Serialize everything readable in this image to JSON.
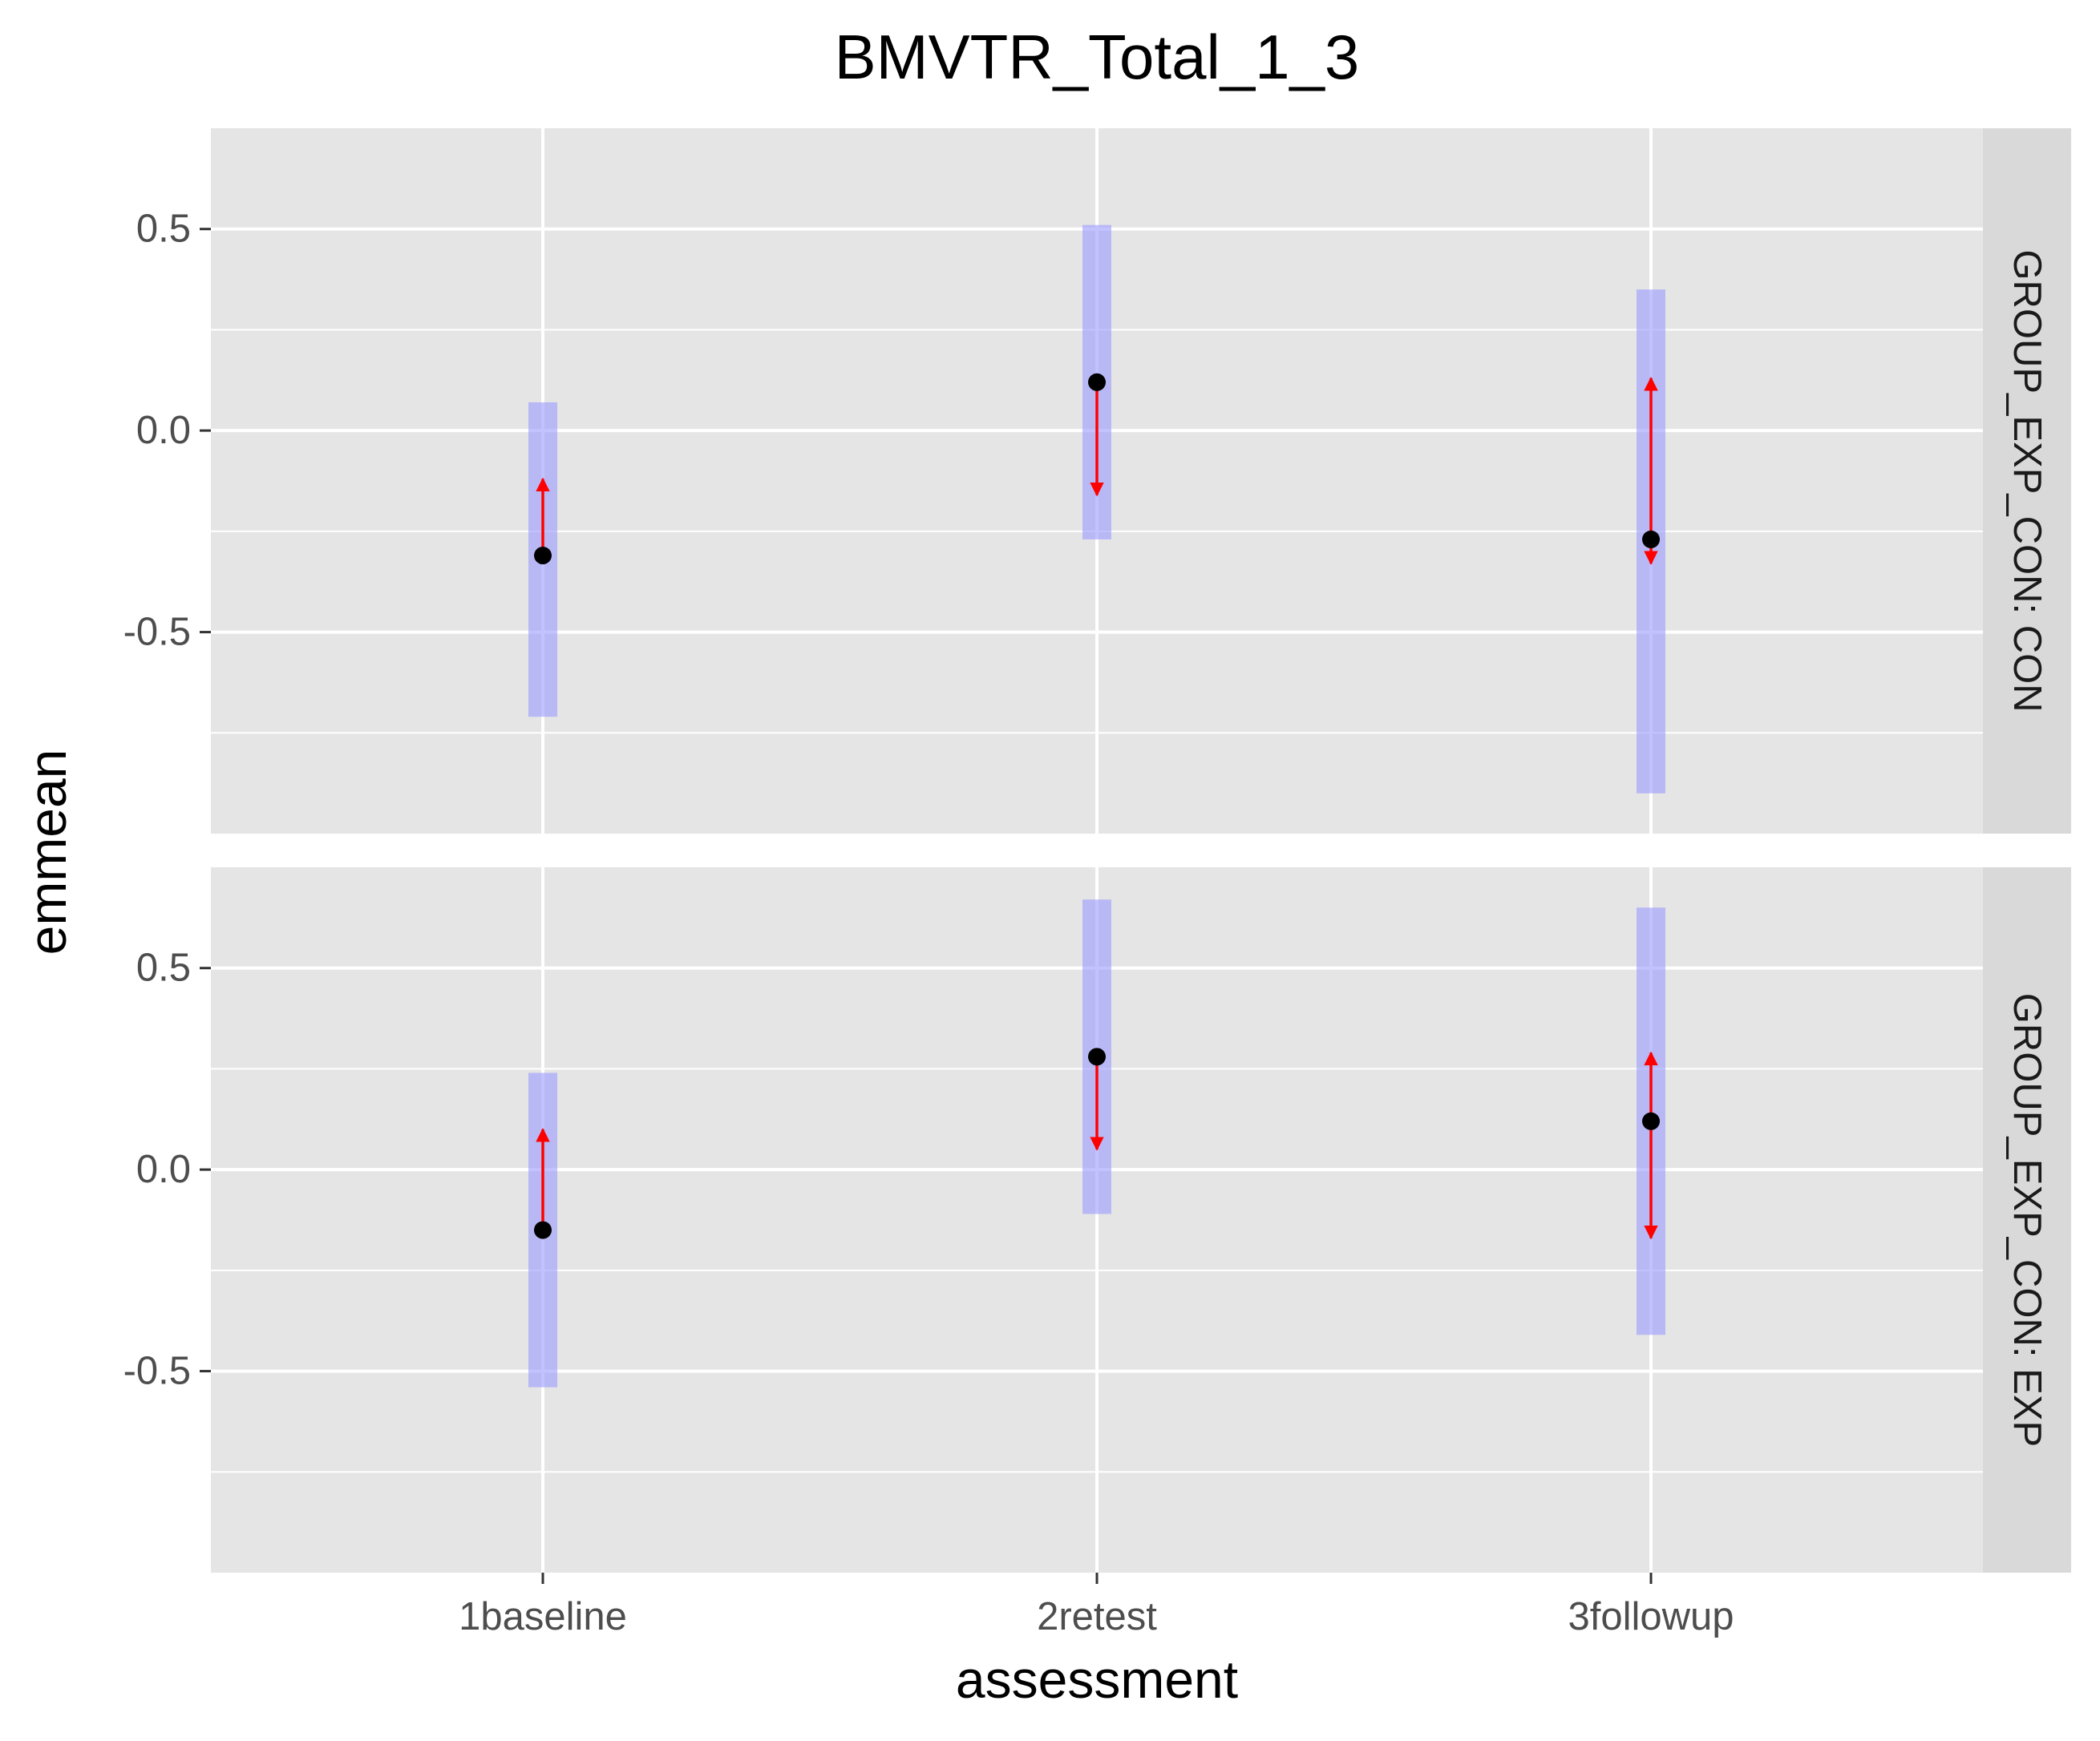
{
  "chart_data": {
    "type": "errorbar-facet",
    "title": "BMVTR_Total_1_3",
    "xlabel": "assessment",
    "ylabel": "emmean",
    "categories": [
      "1baseline",
      "2retest",
      "3followup"
    ],
    "ylim": [
      -1.0,
      0.75
    ],
    "yticks": [
      -0.5,
      0.0,
      0.5
    ],
    "ytick_labels": [
      "-0.5",
      "0.0",
      "0.5"
    ],
    "grid": true,
    "colors": {
      "panel_bg": "#e5e5e5",
      "strip_bg": "#d9d9d9",
      "grid": "#ffffff",
      "ci_band": "#9999ff",
      "point": "#000000",
      "arrow": "#ff0000",
      "tick": "#333333"
    },
    "facets": [
      {
        "label": "GROUP_EXP_CON: CON",
        "emmean": [
          -0.31,
          0.12,
          -0.27
        ],
        "lower_CL": [
          -0.71,
          -0.27,
          -0.9
        ],
        "upper_CL": [
          0.07,
          0.51,
          0.35
        ],
        "comparison_arrows": [
          {
            "from": -0.31,
            "to": -0.12
          },
          {
            "from": 0.12,
            "to": -0.16
          },
          {
            "from": -0.27,
            "to": 0.13
          },
          {
            "from": -0.27,
            "to": -0.33
          }
        ],
        "arrow_categories": [
          0,
          1,
          2,
          2
        ]
      },
      {
        "label": "GROUP_EXP_CON: EXP",
        "emmean": [
          -0.15,
          0.28,
          0.12
        ],
        "lower_CL": [
          -0.54,
          -0.11,
          -0.41
        ],
        "upper_CL": [
          0.24,
          0.67,
          0.65
        ],
        "comparison_arrows": [
          {
            "from": -0.15,
            "to": 0.1
          },
          {
            "from": 0.28,
            "to": 0.05
          },
          {
            "from": 0.12,
            "to": 0.29
          },
          {
            "from": 0.12,
            "to": -0.17
          }
        ],
        "arrow_categories": [
          0,
          1,
          2,
          2
        ]
      }
    ]
  }
}
